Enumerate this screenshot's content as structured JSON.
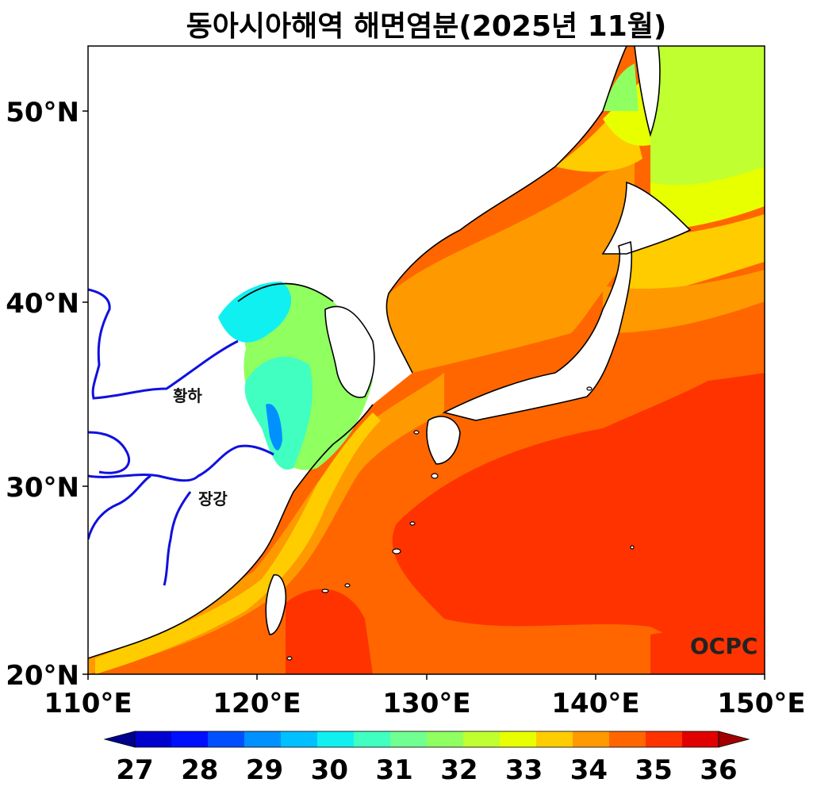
{
  "title": "동아시아해역 해면염분(2025년 11월)",
  "axes": {
    "x_ticks": [
      "110°E",
      "120°E",
      "130°E",
      "140°E",
      "150°E"
    ],
    "y_ticks": [
      "50°N",
      "40°N",
      "30°N",
      "20°N"
    ],
    "lon_range": [
      110,
      150
    ],
    "lat_range": [
      20,
      53.5
    ]
  },
  "rivers": [
    "황하",
    "장강"
  ],
  "credit": "OCPC",
  "colorbar": {
    "ticks": [
      "27",
      "28",
      "29",
      "30",
      "31",
      "32",
      "33",
      "34",
      "35",
      "36"
    ],
    "min": 27,
    "max": 36,
    "step": 0.5,
    "colors": [
      "#00008f",
      "#0000cf",
      "#0010ff",
      "#0050ff",
      "#0090ff",
      "#00c0ff",
      "#10f0f0",
      "#40ffc0",
      "#70ff90",
      "#90ff60",
      "#c0ff30",
      "#e8ff00",
      "#ffcc00",
      "#ff9900",
      "#ff6600",
      "#ff3300",
      "#e00000",
      "#a00000"
    ],
    "extend": "both"
  },
  "colors": {
    "land": "#ffffff",
    "coast": "#000000",
    "river": "#1010e0",
    "ocean_base": "#ff6600"
  }
}
